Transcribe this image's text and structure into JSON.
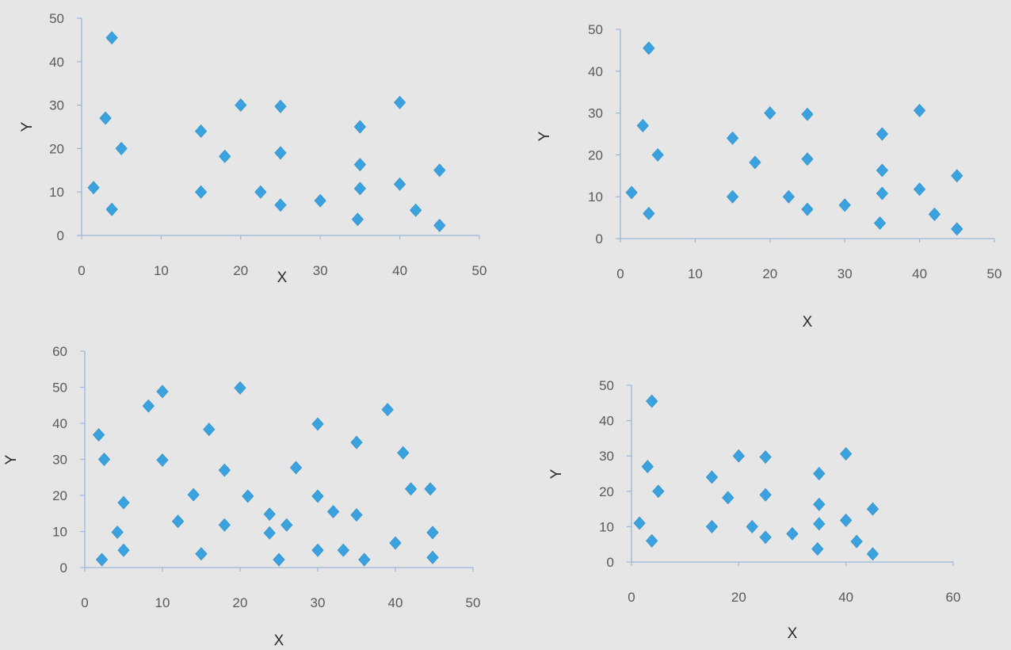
{
  "chart_data": [
    {
      "type": "scatter",
      "xlabel": "X",
      "ylabel": "Y",
      "xlim": [
        0,
        50
      ],
      "ylim": [
        0,
        50
      ],
      "xticks": [
        "0",
        "10",
        "20",
        "30",
        "40",
        "50"
      ],
      "yticks": [
        "0",
        "10",
        "20",
        "30",
        "40",
        "50"
      ],
      "grid": false,
      "points": [
        {
          "x": 1.5,
          "y": 11
        },
        {
          "x": 3,
          "y": 27
        },
        {
          "x": 3.8,
          "y": 45.5
        },
        {
          "x": 3.8,
          "y": 6
        },
        {
          "x": 5,
          "y": 20
        },
        {
          "x": 15,
          "y": 24
        },
        {
          "x": 15,
          "y": 10
        },
        {
          "x": 18,
          "y": 18.2
        },
        {
          "x": 20,
          "y": 30
        },
        {
          "x": 22.5,
          "y": 10
        },
        {
          "x": 25,
          "y": 29.7
        },
        {
          "x": 25,
          "y": 19
        },
        {
          "x": 25,
          "y": 7
        },
        {
          "x": 30,
          "y": 8
        },
        {
          "x": 35,
          "y": 25
        },
        {
          "x": 35,
          "y": 16.3
        },
        {
          "x": 35,
          "y": 10.8
        },
        {
          "x": 34.7,
          "y": 3.7
        },
        {
          "x": 40,
          "y": 30.6
        },
        {
          "x": 40,
          "y": 11.8
        },
        {
          "x": 42,
          "y": 5.8
        },
        {
          "x": 45,
          "y": 15
        },
        {
          "x": 45,
          "y": 2.3
        }
      ]
    },
    {
      "type": "scatter",
      "xlabel": "X",
      "ylabel": "Y",
      "xlim": [
        0,
        50
      ],
      "ylim": [
        0,
        50
      ],
      "xticks": [
        "0",
        "10",
        "20",
        "30",
        "40",
        "50"
      ],
      "yticks": [
        "0",
        "10",
        "20",
        "30",
        "40",
        "50"
      ],
      "grid": false,
      "points": [
        {
          "x": 1.5,
          "y": 11
        },
        {
          "x": 3,
          "y": 27
        },
        {
          "x": 3.8,
          "y": 45.5
        },
        {
          "x": 3.8,
          "y": 6
        },
        {
          "x": 5,
          "y": 20
        },
        {
          "x": 15,
          "y": 24
        },
        {
          "x": 15,
          "y": 10
        },
        {
          "x": 18,
          "y": 18.2
        },
        {
          "x": 20,
          "y": 30
        },
        {
          "x": 22.5,
          "y": 10
        },
        {
          "x": 25,
          "y": 29.7
        },
        {
          "x": 25,
          "y": 19
        },
        {
          "x": 25,
          "y": 7
        },
        {
          "x": 30,
          "y": 8
        },
        {
          "x": 35,
          "y": 25
        },
        {
          "x": 35,
          "y": 16.3
        },
        {
          "x": 35,
          "y": 10.8
        },
        {
          "x": 34.7,
          "y": 3.7
        },
        {
          "x": 40,
          "y": 30.6
        },
        {
          "x": 40,
          "y": 11.8
        },
        {
          "x": 42,
          "y": 5.8
        },
        {
          "x": 45,
          "y": 15
        },
        {
          "x": 45,
          "y": 2.3
        }
      ]
    },
    {
      "type": "scatter",
      "xlabel": "X",
      "ylabel": "Y",
      "xlim": [
        0,
        50
      ],
      "ylim": [
        0,
        60
      ],
      "xticks": [
        "0",
        "10",
        "20",
        "30",
        "40",
        "50"
      ],
      "yticks": [
        "0",
        "10",
        "20",
        "30",
        "40",
        "50",
        "60"
      ],
      "grid": false,
      "points": [
        {
          "x": 1.8,
          "y": 36.8
        },
        {
          "x": 2.5,
          "y": 30
        },
        {
          "x": 2.2,
          "y": 2.2
        },
        {
          "x": 4.2,
          "y": 9.8
        },
        {
          "x": 5,
          "y": 18
        },
        {
          "x": 5,
          "y": 4.8
        },
        {
          "x": 8.2,
          "y": 44.8
        },
        {
          "x": 10,
          "y": 48.8
        },
        {
          "x": 10,
          "y": 29.8
        },
        {
          "x": 12,
          "y": 12.8
        },
        {
          "x": 14,
          "y": 20.2
        },
        {
          "x": 15,
          "y": 3.8
        },
        {
          "x": 16,
          "y": 38.3
        },
        {
          "x": 18,
          "y": 27
        },
        {
          "x": 18,
          "y": 11.8
        },
        {
          "x": 20,
          "y": 49.8
        },
        {
          "x": 21,
          "y": 19.8
        },
        {
          "x": 23.8,
          "y": 14.8
        },
        {
          "x": 23.8,
          "y": 9.6
        },
        {
          "x": 25,
          "y": 2.2
        },
        {
          "x": 26,
          "y": 11.8
        },
        {
          "x": 27.2,
          "y": 27.7
        },
        {
          "x": 30,
          "y": 39.8
        },
        {
          "x": 30,
          "y": 19.8
        },
        {
          "x": 30,
          "y": 4.8
        },
        {
          "x": 32,
          "y": 15.5
        },
        {
          "x": 33.3,
          "y": 4.8
        },
        {
          "x": 35,
          "y": 34.7
        },
        {
          "x": 35,
          "y": 14.6
        },
        {
          "x": 36,
          "y": 2.2
        },
        {
          "x": 39,
          "y": 43.8
        },
        {
          "x": 40,
          "y": 6.8
        },
        {
          "x": 41,
          "y": 31.8
        },
        {
          "x": 42,
          "y": 21.8
        },
        {
          "x": 44.5,
          "y": 21.8
        },
        {
          "x": 44.8,
          "y": 9.7
        },
        {
          "x": 44.8,
          "y": 2.8
        }
      ]
    },
    {
      "type": "scatter",
      "xlabel": "X",
      "ylabel": "Y",
      "xlim": [
        0,
        60
      ],
      "ylim": [
        0,
        50
      ],
      "xticks": [
        "0",
        "20",
        "40",
        "60"
      ],
      "yticks": [
        "0",
        "10",
        "20",
        "30",
        "40",
        "50"
      ],
      "grid": false,
      "points": [
        {
          "x": 1.5,
          "y": 11
        },
        {
          "x": 3,
          "y": 27
        },
        {
          "x": 3.8,
          "y": 45.5
        },
        {
          "x": 3.8,
          "y": 6
        },
        {
          "x": 5,
          "y": 20
        },
        {
          "x": 15,
          "y": 24
        },
        {
          "x": 15,
          "y": 10
        },
        {
          "x": 18,
          "y": 18.2
        },
        {
          "x": 20,
          "y": 30
        },
        {
          "x": 22.5,
          "y": 10
        },
        {
          "x": 25,
          "y": 29.7
        },
        {
          "x": 25,
          "y": 19
        },
        {
          "x": 25,
          "y": 7
        },
        {
          "x": 30,
          "y": 8
        },
        {
          "x": 35,
          "y": 25
        },
        {
          "x": 35,
          "y": 16.3
        },
        {
          "x": 35,
          "y": 10.8
        },
        {
          "x": 34.7,
          "y": 3.7
        },
        {
          "x": 40,
          "y": 30.6
        },
        {
          "x": 40,
          "y": 11.8
        },
        {
          "x": 42,
          "y": 5.8
        },
        {
          "x": 45,
          "y": 15
        },
        {
          "x": 45,
          "y": 2.3
        }
      ]
    }
  ]
}
